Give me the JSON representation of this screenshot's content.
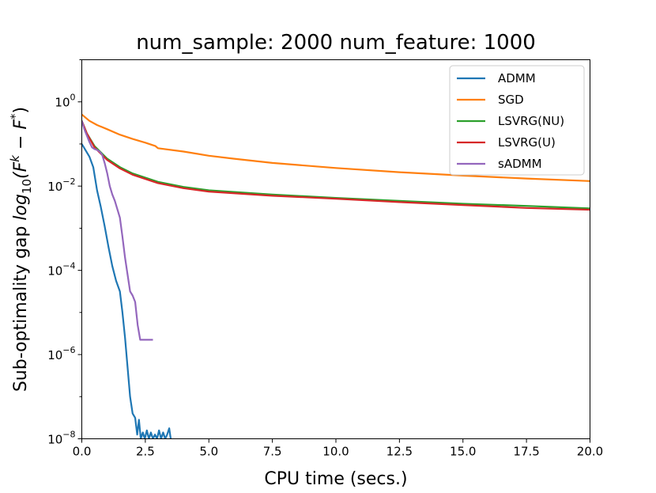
{
  "chart_data": {
    "type": "line",
    "title": "num_sample: 2000 num_feature: 1000",
    "xlabel": "CPU time (secs.)",
    "ylabel": "Sub-optimality gap log10(F^k - F^*)",
    "ylabel_parts": {
      "prefix": "Sub-optimality gap ",
      "log": "log",
      "sub": "10",
      "open": "(F",
      "k": "k",
      "minus": " − F",
      "star": "*",
      "close": ")"
    },
    "xlim": [
      0,
      20
    ],
    "ylim_log10": [
      -8,
      1
    ],
    "yscale": "log",
    "grid": false,
    "legend_position": "top-right",
    "x_ticks": [
      "0.0",
      "2.5",
      "5.0",
      "7.5",
      "10.0",
      "12.5",
      "15.0",
      "17.5",
      "20.0"
    ],
    "y_ticks": [
      {
        "exp": -8,
        "base": "10",
        "sup": "−8"
      },
      {
        "exp": -6,
        "base": "10",
        "sup": "−6"
      },
      {
        "exp": -4,
        "base": "10",
        "sup": "−4"
      },
      {
        "exp": -2,
        "base": "10",
        "sup": "−2"
      },
      {
        "exp": 0,
        "base": "10",
        "sup": "0"
      }
    ],
    "series": [
      {
        "name": "ADMM",
        "color": "#1f77b4",
        "points": [
          [
            0.0,
            -1.0
          ],
          [
            0.15,
            -1.15
          ],
          [
            0.3,
            -1.3
          ],
          [
            0.45,
            -1.55
          ],
          [
            0.6,
            -2.1
          ],
          [
            0.75,
            -2.5
          ],
          [
            0.9,
            -2.95
          ],
          [
            1.05,
            -3.45
          ],
          [
            1.2,
            -3.9
          ],
          [
            1.35,
            -4.25
          ],
          [
            1.5,
            -4.5
          ],
          [
            1.6,
            -5.0
          ],
          [
            1.7,
            -5.6
          ],
          [
            1.8,
            -6.3
          ],
          [
            1.9,
            -7.0
          ],
          [
            2.0,
            -7.4
          ],
          [
            2.1,
            -7.5
          ],
          [
            2.18,
            -7.9
          ],
          [
            2.25,
            -7.55
          ],
          [
            2.32,
            -8.0
          ],
          [
            2.4,
            -7.85
          ],
          [
            2.48,
            -8.0
          ],
          [
            2.56,
            -7.8
          ],
          [
            2.64,
            -8.0
          ],
          [
            2.72,
            -7.85
          ],
          [
            2.8,
            -8.0
          ],
          [
            2.88,
            -7.9
          ],
          [
            2.96,
            -8.0
          ],
          [
            3.04,
            -7.8
          ],
          [
            3.12,
            -8.0
          ],
          [
            3.2,
            -7.85
          ],
          [
            3.28,
            -8.0
          ],
          [
            3.36,
            -7.9
          ],
          [
            3.44,
            -7.75
          ],
          [
            3.5,
            -8.0
          ]
        ]
      },
      {
        "name": "SGD",
        "color": "#ff7f0e",
        "points": [
          [
            0.0,
            -0.3
          ],
          [
            0.3,
            -0.45
          ],
          [
            0.6,
            -0.55
          ],
          [
            1.0,
            -0.65
          ],
          [
            1.5,
            -0.78
          ],
          [
            2.0,
            -0.88
          ],
          [
            2.5,
            -0.97
          ],
          [
            2.9,
            -1.05
          ],
          [
            3.0,
            -1.1
          ],
          [
            4.0,
            -1.18
          ],
          [
            5.0,
            -1.28
          ],
          [
            6.0,
            -1.35
          ],
          [
            7.5,
            -1.45
          ],
          [
            10.0,
            -1.57
          ],
          [
            12.5,
            -1.67
          ],
          [
            15.0,
            -1.75
          ],
          [
            17.5,
            -1.82
          ],
          [
            20.0,
            -1.88
          ]
        ]
      },
      {
        "name": "LSVRG(NU)",
        "color": "#2ca02c",
        "points": [
          [
            0.0,
            -0.45
          ],
          [
            0.2,
            -0.75
          ],
          [
            0.5,
            -1.05
          ],
          [
            1.0,
            -1.35
          ],
          [
            1.5,
            -1.55
          ],
          [
            2.0,
            -1.7
          ],
          [
            3.0,
            -1.9
          ],
          [
            4.0,
            -2.02
          ],
          [
            5.0,
            -2.1
          ],
          [
            7.5,
            -2.2
          ],
          [
            10.0,
            -2.28
          ],
          [
            12.5,
            -2.35
          ],
          [
            15.0,
            -2.42
          ],
          [
            17.5,
            -2.47
          ],
          [
            20.0,
            -2.53
          ]
        ]
      },
      {
        "name": "LSVRG(U)",
        "color": "#d62728",
        "points": [
          [
            0.0,
            -0.45
          ],
          [
            0.2,
            -0.75
          ],
          [
            0.5,
            -1.08
          ],
          [
            1.0,
            -1.38
          ],
          [
            1.5,
            -1.58
          ],
          [
            2.0,
            -1.73
          ],
          [
            3.0,
            -1.93
          ],
          [
            4.0,
            -2.05
          ],
          [
            5.0,
            -2.13
          ],
          [
            7.5,
            -2.23
          ],
          [
            10.0,
            -2.3
          ],
          [
            12.5,
            -2.38
          ],
          [
            15.0,
            -2.45
          ],
          [
            17.5,
            -2.52
          ],
          [
            20.0,
            -2.56
          ]
        ]
      },
      {
        "name": "sADMM",
        "color": "#9467bd",
        "points": [
          [
            0.0,
            -0.45
          ],
          [
            0.1,
            -0.65
          ],
          [
            0.2,
            -0.8
          ],
          [
            0.3,
            -0.95
          ],
          [
            0.4,
            -1.08
          ],
          [
            0.5,
            -1.12
          ],
          [
            0.6,
            -1.14
          ],
          [
            0.7,
            -1.18
          ],
          [
            0.8,
            -1.25
          ],
          [
            0.9,
            -1.45
          ],
          [
            1.0,
            -1.7
          ],
          [
            1.1,
            -2.0
          ],
          [
            1.2,
            -2.2
          ],
          [
            1.3,
            -2.35
          ],
          [
            1.4,
            -2.55
          ],
          [
            1.5,
            -2.75
          ],
          [
            1.6,
            -3.2
          ],
          [
            1.7,
            -3.7
          ],
          [
            1.8,
            -4.1
          ],
          [
            1.9,
            -4.5
          ],
          [
            2.0,
            -4.6
          ],
          [
            2.1,
            -4.75
          ],
          [
            2.2,
            -5.3
          ],
          [
            2.3,
            -5.65
          ],
          [
            2.5,
            -5.65
          ],
          [
            2.8,
            -5.65
          ]
        ]
      }
    ]
  }
}
